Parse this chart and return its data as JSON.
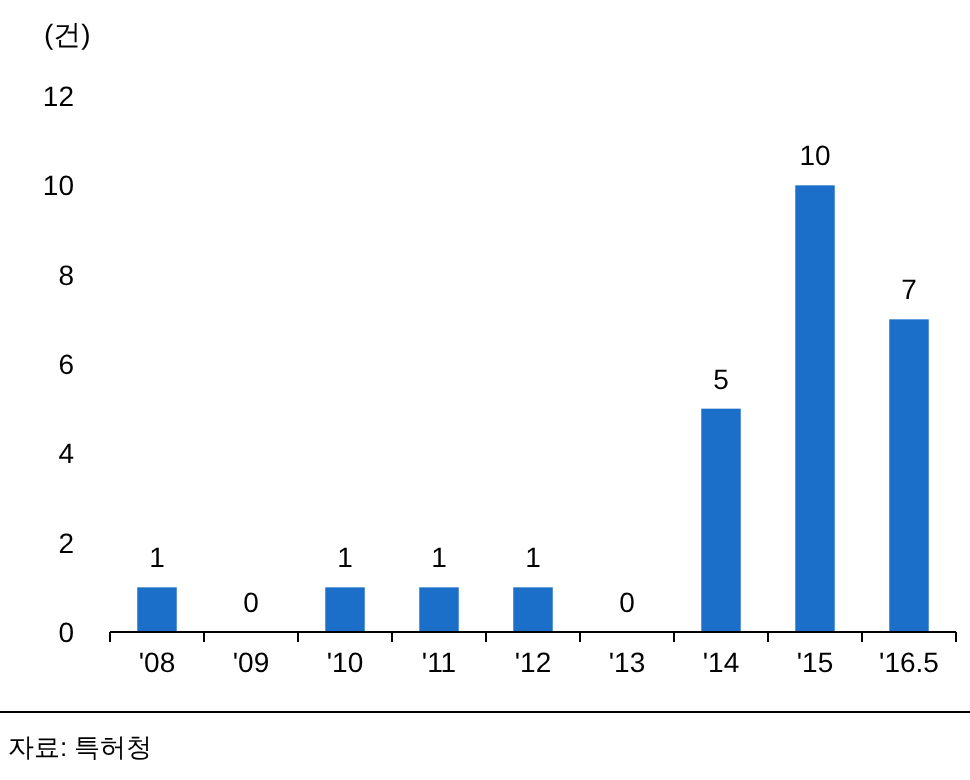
{
  "chart_data": {
    "type": "bar",
    "ylabel": "(건)",
    "categories": [
      "'08",
      "'09",
      "'10",
      "'11",
      "'12",
      "'13",
      "'14",
      "'15",
      "'16.5"
    ],
    "values": [
      1,
      0,
      1,
      1,
      1,
      0,
      5,
      10,
      7
    ],
    "color": "#1c6fc8",
    "ylim": [
      0,
      12
    ],
    "yticks": [
      0,
      2,
      4,
      6,
      8,
      10,
      12
    ],
    "data_labels": true,
    "annotations": [
      "자료: 특허청"
    ]
  }
}
